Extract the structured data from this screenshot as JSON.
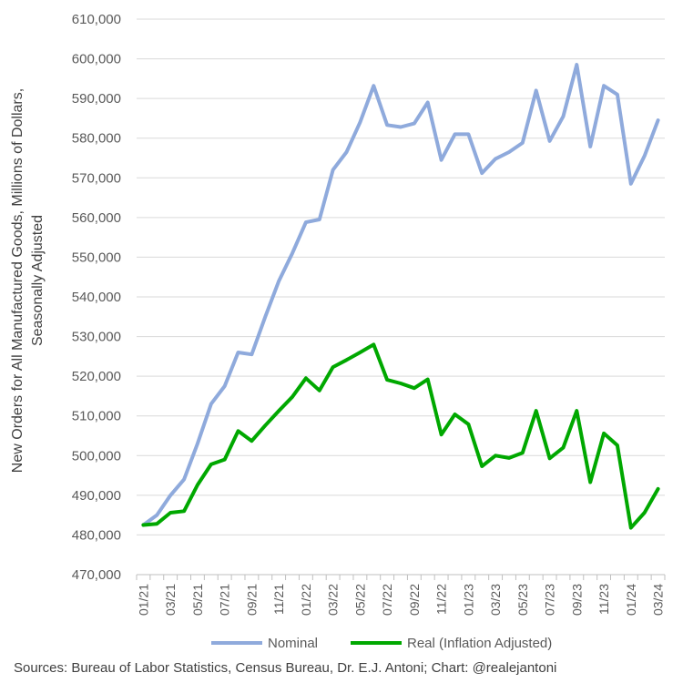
{
  "chart_data": {
    "type": "line",
    "ylabel": "New Orders for All Manufactured Goods, Millions of Dollars, Seasonally Adjusted",
    "ylabel_lines": [
      "New Orders for All Manufactured Goods, Millions of Dollars,",
      "Seasonally Adjusted"
    ],
    "ylim": [
      470000,
      610000
    ],
    "y_ticks": [
      "470,000",
      "480,000",
      "490,000",
      "500,000",
      "510,000",
      "520,000",
      "530,000",
      "540,000",
      "550,000",
      "560,000",
      "570,000",
      "580,000",
      "590,000",
      "600,000",
      "610,000"
    ],
    "x_tick_labels": [
      "01/21",
      "03/21",
      "05/21",
      "07/21",
      "09/21",
      "11/21",
      "01/22",
      "03/22",
      "05/22",
      "07/22",
      "09/22",
      "11/22",
      "01/23",
      "03/23",
      "05/23",
      "07/23",
      "09/23",
      "11/23",
      "01/24",
      "03/24"
    ],
    "x": [
      "01/21",
      "02/21",
      "03/21",
      "04/21",
      "05/21",
      "06/21",
      "07/21",
      "08/21",
      "09/21",
      "10/21",
      "11/21",
      "12/21",
      "01/22",
      "02/22",
      "03/22",
      "04/22",
      "05/22",
      "06/22",
      "07/22",
      "08/22",
      "09/22",
      "10/22",
      "11/22",
      "12/22",
      "01/23",
      "02/23",
      "03/23",
      "04/23",
      "05/23",
      "06/23",
      "07/23",
      "08/23",
      "09/23",
      "10/23",
      "11/23",
      "12/23",
      "01/24",
      "02/24",
      "03/24"
    ],
    "series": [
      {
        "name": "Nominal",
        "color": "#8FAADC",
        "values": [
          482500,
          485000,
          490000,
          494000,
          503000,
          513000,
          517500,
          526000,
          525500,
          535000,
          544000,
          551000,
          558800,
          559500,
          572000,
          576500,
          584000,
          593200,
          583300,
          582800,
          583700,
          589000,
          574500,
          581000,
          581000,
          571200,
          574800,
          576500,
          578800,
          592000,
          579300,
          585500,
          598500,
          577900,
          593200,
          591000,
          568500,
          575500,
          584500
        ]
      },
      {
        "name": "Real (Inflation Adjusted)",
        "color": "#00A800",
        "values": [
          482500,
          482800,
          485600,
          486000,
          492600,
          497800,
          499000,
          506200,
          503700,
          507600,
          511300,
          514800,
          519500,
          516400,
          522300,
          524100,
          526000,
          528000,
          519100,
          518200,
          517000,
          519200,
          505300,
          510400,
          507900,
          497300,
          500000,
          499400,
          500700,
          511300,
          499300,
          502000,
          511300,
          493300,
          505600,
          502600,
          481800,
          485600,
          491600
        ]
      }
    ],
    "legend_position": "bottom",
    "grid": true
  },
  "source_text": "Sources: Bureau of Labor Statistics, Census Bureau, Dr. E.J. Antoni; Chart: @realejantoni"
}
